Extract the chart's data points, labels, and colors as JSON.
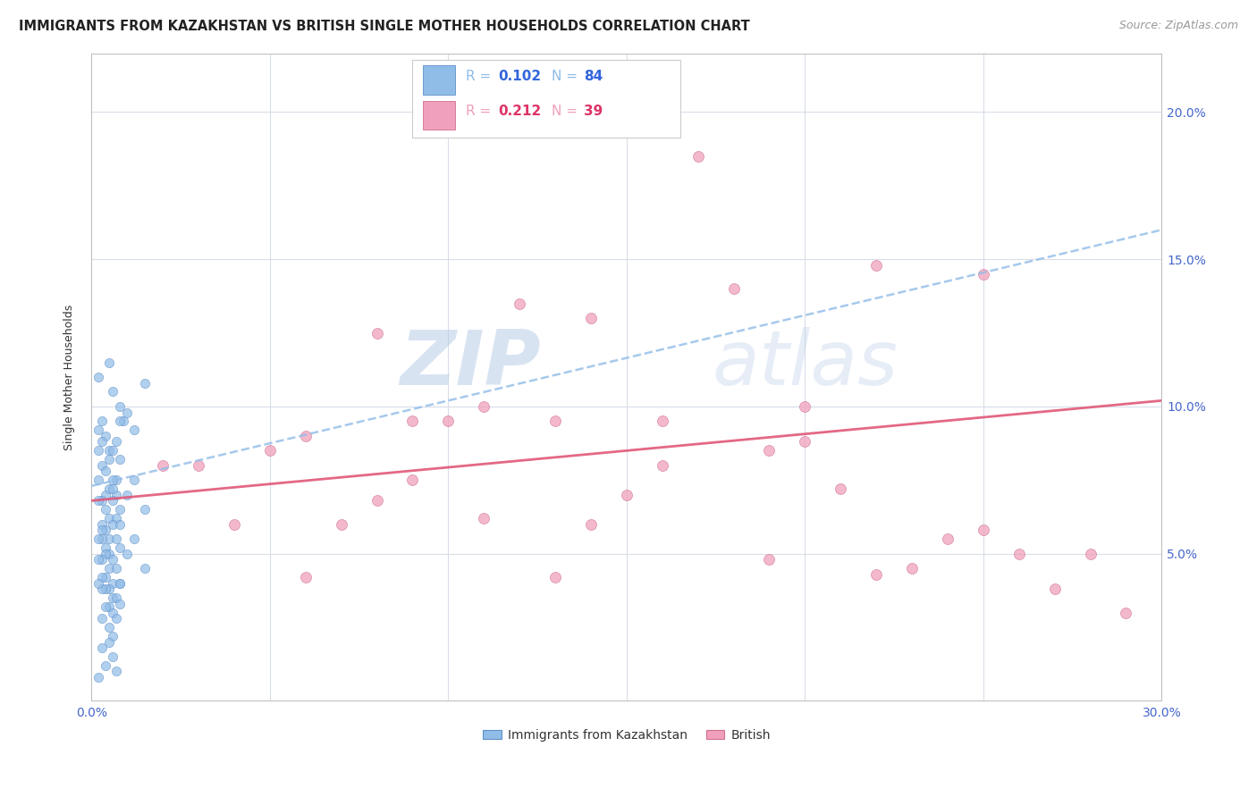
{
  "title": "IMMIGRANTS FROM KAZAKHSTAN VS BRITISH SINGLE MOTHER HOUSEHOLDS CORRELATION CHART",
  "source": "Source: ZipAtlas.com",
  "ylabel": "Single Mother Households",
  "xlim": [
    0.0,
    0.3
  ],
  "ylim": [
    0.0,
    0.22
  ],
  "x_ticks": [
    0.0,
    0.05,
    0.1,
    0.15,
    0.2,
    0.25,
    0.3
  ],
  "x_tick_labels_left": "0.0%",
  "x_tick_labels_right": "30.0%",
  "y_ticks": [
    0.0,
    0.05,
    0.1,
    0.15,
    0.2
  ],
  "y_tick_labels": [
    "",
    "5.0%",
    "10.0%",
    "15.0%",
    "20.0%"
  ],
  "watermark_zip": "ZIP",
  "watermark_atlas": "atlas",
  "blue_color": "#90bce8",
  "blue_edge": "#6090c8",
  "pink_color": "#f0a0bc",
  "pink_edge": "#d07090",
  "blue_line_color": "#90bce8",
  "pink_line_color": "#e05878",
  "tick_color": "#4466cc",
  "blue_label_R": "R = 0.102",
  "blue_label_N": "N = 84",
  "pink_label_R": "R = 0.212",
  "pink_label_N": "N = 39",
  "legend_label_blue": "Immigrants from Kazakhstan",
  "legend_label_pink": "British",
  "blue_scatter_x": [
    0.005,
    0.008,
    0.003,
    0.006,
    0.004,
    0.007,
    0.002,
    0.009,
    0.005,
    0.003,
    0.006,
    0.004,
    0.007,
    0.002,
    0.005,
    0.008,
    0.003,
    0.006,
    0.004,
    0.005,
    0.003,
    0.007,
    0.004,
    0.006,
    0.002,
    0.005,
    0.008,
    0.003,
    0.006,
    0.004,
    0.007,
    0.002,
    0.005,
    0.003,
    0.006,
    0.004,
    0.007,
    0.002,
    0.005,
    0.008,
    0.003,
    0.006,
    0.004,
    0.005,
    0.003,
    0.007,
    0.004,
    0.006,
    0.002,
    0.005,
    0.008,
    0.003,
    0.006,
    0.004,
    0.007,
    0.002,
    0.005,
    0.008,
    0.003,
    0.006,
    0.004,
    0.007,
    0.002,
    0.005,
    0.003,
    0.006,
    0.012,
    0.01,
    0.015,
    0.008,
    0.012,
    0.01,
    0.015,
    0.008,
    0.012,
    0.01,
    0.015,
    0.008,
    0.005,
    0.003,
    0.006,
    0.004,
    0.007,
    0.002
  ],
  "blue_scatter_y": [
    0.115,
    0.1,
    0.095,
    0.105,
    0.09,
    0.088,
    0.11,
    0.095,
    0.085,
    0.08,
    0.085,
    0.078,
    0.075,
    0.092,
    0.082,
    0.095,
    0.088,
    0.075,
    0.07,
    0.072,
    0.068,
    0.07,
    0.065,
    0.072,
    0.085,
    0.062,
    0.065,
    0.06,
    0.068,
    0.058,
    0.062,
    0.075,
    0.055,
    0.058,
    0.06,
    0.052,
    0.055,
    0.068,
    0.05,
    0.052,
    0.055,
    0.048,
    0.05,
    0.045,
    0.048,
    0.045,
    0.042,
    0.04,
    0.055,
    0.038,
    0.04,
    0.042,
    0.035,
    0.038,
    0.035,
    0.048,
    0.032,
    0.033,
    0.038,
    0.03,
    0.032,
    0.028,
    0.04,
    0.025,
    0.028,
    0.022,
    0.092,
    0.098,
    0.108,
    0.082,
    0.075,
    0.07,
    0.065,
    0.06,
    0.055,
    0.05,
    0.045,
    0.04,
    0.02,
    0.018,
    0.015,
    0.012,
    0.01,
    0.008
  ],
  "pink_scatter_x": [
    0.17,
    0.12,
    0.08,
    0.14,
    0.2,
    0.25,
    0.18,
    0.22,
    0.1,
    0.06,
    0.13,
    0.16,
    0.21,
    0.15,
    0.09,
    0.19,
    0.11,
    0.23,
    0.07,
    0.05,
    0.03,
    0.24,
    0.28,
    0.29,
    0.26,
    0.04,
    0.02,
    0.08,
    0.14,
    0.19,
    0.11,
    0.16,
    0.22,
    0.09,
    0.25,
    0.06,
    0.13,
    0.2,
    0.27
  ],
  "pink_scatter_y": [
    0.185,
    0.135,
    0.125,
    0.13,
    0.1,
    0.145,
    0.14,
    0.148,
    0.095,
    0.09,
    0.095,
    0.095,
    0.072,
    0.07,
    0.095,
    0.085,
    0.1,
    0.045,
    0.06,
    0.085,
    0.08,
    0.055,
    0.05,
    0.03,
    0.05,
    0.06,
    0.08,
    0.068,
    0.06,
    0.048,
    0.062,
    0.08,
    0.043,
    0.075,
    0.058,
    0.042,
    0.042,
    0.088,
    0.038
  ],
  "blue_trend_x": [
    0.0,
    0.3
  ],
  "blue_trend_y": [
    0.073,
    0.16
  ],
  "pink_trend_x": [
    0.0,
    0.3
  ],
  "pink_trend_y": [
    0.068,
    0.102
  ],
  "scatter_size_blue": 55,
  "scatter_size_pink": 75,
  "title_fontsize": 10.5,
  "axis_label_fontsize": 9,
  "tick_fontsize": 10,
  "source_fontsize": 9
}
